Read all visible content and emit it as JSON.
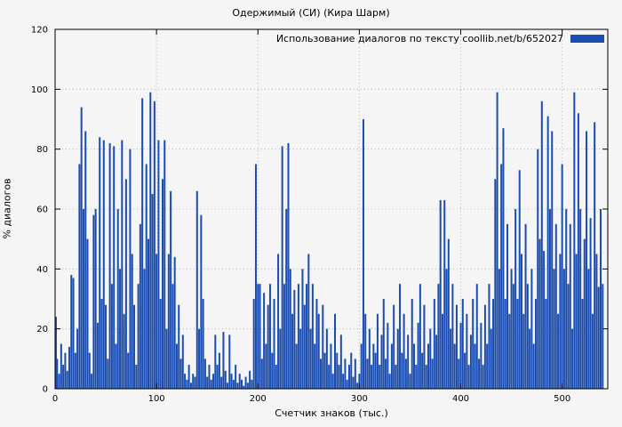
{
  "chart_data": {
    "type": "bar",
    "title": "Одержимый (СИ) (Кира Шарм)",
    "legend": "Использование диалогов по тексту coollib.net/b/652027",
    "xlabel": "Счетчик знаков (тыс.)",
    "ylabel": "% диалогов",
    "xlim": [
      0,
      545
    ],
    "ylim": [
      0,
      120
    ],
    "xticks": [
      0,
      100,
      200,
      300,
      400,
      500
    ],
    "yticks": [
      0,
      20,
      40,
      60,
      80,
      100,
      120
    ],
    "bar_color": "#1b4db1",
    "grid_color": "#b4b4b4",
    "x_start": 0,
    "x_step": 2,
    "values": [
      24,
      10,
      5,
      15,
      8,
      12,
      6,
      14,
      38,
      37,
      12,
      20,
      75,
      94,
      60,
      86,
      50,
      12,
      5,
      58,
      60,
      22,
      84,
      30,
      83,
      28,
      10,
      82,
      35,
      81,
      15,
      60,
      40,
      83,
      25,
      70,
      12,
      80,
      45,
      28,
      8,
      35,
      55,
      97,
      40,
      75,
      50,
      99,
      65,
      96,
      45,
      83,
      30,
      70,
      83,
      20,
      45,
      66,
      35,
      44,
      15,
      28,
      10,
      18,
      5,
      3,
      8,
      2,
      5,
      4,
      66,
      20,
      58,
      30,
      10,
      4,
      8,
      3,
      5,
      18,
      8,
      12,
      4,
      19,
      6,
      2,
      18,
      5,
      3,
      8,
      2,
      5,
      3,
      1,
      4,
      2,
      6,
      3,
      30,
      75,
      35,
      35,
      10,
      32,
      15,
      28,
      35,
      12,
      30,
      8,
      45,
      20,
      81,
      35,
      60,
      82,
      40,
      25,
      33,
      15,
      35,
      20,
      40,
      28,
      35,
      45,
      20,
      35,
      15,
      30,
      25,
      10,
      28,
      12,
      20,
      8,
      15,
      5,
      25,
      12,
      8,
      18,
      5,
      10,
      3,
      8,
      12,
      4,
      10,
      2,
      5,
      15,
      90,
      25,
      10,
      20,
      8,
      15,
      12,
      25,
      8,
      18,
      30,
      10,
      22,
      5,
      15,
      28,
      8,
      20,
      35,
      12,
      25,
      10,
      18,
      5,
      30,
      15,
      8,
      22,
      35,
      12,
      28,
      8,
      15,
      20,
      10,
      30,
      18,
      35,
      63,
      25,
      63,
      40,
      50,
      20,
      35,
      15,
      28,
      10,
      22,
      30,
      12,
      25,
      8,
      18,
      30,
      15,
      35,
      10,
      22,
      8,
      28,
      15,
      35,
      20,
      30,
      70,
      99,
      40,
      75,
      87,
      30,
      55,
      25,
      40,
      35,
      60,
      30,
      73,
      45,
      25,
      55,
      35,
      20,
      40,
      15,
      30,
      80,
      50,
      96,
      46,
      30,
      91,
      60,
      86,
      40,
      55,
      25,
      45,
      75,
      40,
      60,
      35,
      55,
      20,
      99,
      45,
      92,
      60,
      30,
      50,
      86,
      40,
      57,
      25,
      89,
      45,
      34,
      60,
      35
    ]
  }
}
